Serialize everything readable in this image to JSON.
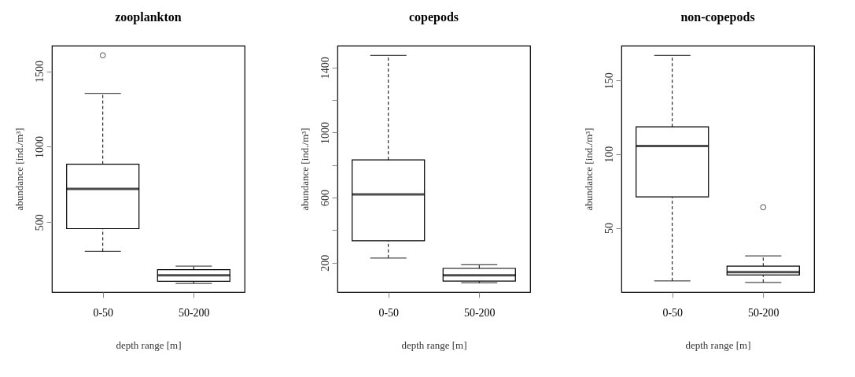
{
  "chart_data": [
    {
      "type": "box",
      "title": "zooplankton",
      "xlabel": "depth range [m]",
      "ylabel": "abundance [ind./m³]",
      "categories": [
        "0-50",
        "50-200"
      ],
      "ylim": [
        37,
        1670
      ],
      "yticks": [
        500,
        1000,
        1500
      ],
      "grid": false,
      "boxes": [
        {
          "low": 306,
          "q1": 457,
          "median": 720,
          "q3": 884,
          "high": 1354,
          "outliers": [
            1606
          ]
        },
        {
          "low": 94,
          "q1": 108,
          "median": 148,
          "q3": 185,
          "high": 208
        }
      ]
    },
    {
      "type": "box",
      "title": "copepods",
      "xlabel": "depth range [m]",
      "ylabel": "abundance [ind./m³]",
      "categories": [
        "0-50",
        "50-200"
      ],
      "ylim": [
        20,
        1534
      ],
      "yticks": [
        200,
        {
          "value": 400,
          "label": null
        },
        600,
        {
          "value": 800,
          "label": null
        },
        1000,
        {
          "value": 1200,
          "label": null
        },
        1400
      ],
      "grid": false,
      "boxes": [
        {
          "low": 229,
          "q1": 335,
          "median": 620,
          "q3": 832,
          "high": 1474
        },
        {
          "low": 76,
          "q1": 87,
          "median": 123,
          "q3": 165,
          "high": 187
        }
      ]
    },
    {
      "type": "box",
      "title": "non-copepods",
      "xlabel": "depth range [m]",
      "ylabel": "abundance [ind./m³]",
      "categories": [
        "0-50",
        "50-200"
      ],
      "ylim": [
        6.5,
        173.6
      ],
      "yticks": [
        50,
        100,
        150
      ],
      "grid": false,
      "boxes": [
        {
          "low": 14,
          "q1": 71,
          "median": 105.5,
          "q3": 118.5,
          "high": 167
        },
        {
          "low": 13,
          "q1": 18,
          "median": 20,
          "q3": 24,
          "high": 31,
          "outliers": [
            64
          ]
        }
      ]
    }
  ]
}
